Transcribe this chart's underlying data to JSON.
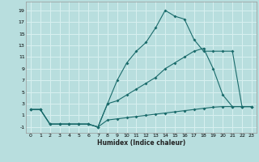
{
  "xlabel": "Humidex (Indice chaleur)",
  "bg_color": "#b8dede",
  "grid_color": "#d8f0f0",
  "line_color": "#1a6b6b",
  "xlim": [
    -0.5,
    23.5
  ],
  "ylim": [
    -2.0,
    20.5
  ],
  "xticks": [
    0,
    1,
    2,
    3,
    4,
    5,
    6,
    7,
    8,
    9,
    10,
    11,
    12,
    13,
    14,
    15,
    16,
    17,
    18,
    19,
    20,
    21,
    22,
    23
  ],
  "yticks": [
    -1,
    1,
    3,
    5,
    7,
    9,
    11,
    13,
    15,
    17,
    19
  ],
  "line1_x": [
    0,
    1,
    2,
    3,
    4,
    5,
    6,
    7,
    8,
    9,
    10,
    11,
    12,
    13,
    14,
    15,
    16,
    17,
    18,
    19,
    20,
    21,
    22,
    23
  ],
  "line1_y": [
    2,
    2,
    -0.5,
    -0.5,
    -0.5,
    -0.5,
    -0.5,
    -1.0,
    0.2,
    0.4,
    0.6,
    0.8,
    1.0,
    1.2,
    1.4,
    1.6,
    1.8,
    2.0,
    2.2,
    2.4,
    2.5,
    2.5,
    2.5,
    2.5
  ],
  "line2_x": [
    0,
    1,
    2,
    3,
    4,
    5,
    6,
    7,
    8,
    9,
    10,
    11,
    12,
    13,
    14,
    15,
    16,
    17,
    18,
    19,
    20,
    21,
    22,
    23
  ],
  "line2_y": [
    2,
    2,
    -0.5,
    -0.5,
    -0.5,
    -0.5,
    -0.5,
    -1.0,
    3.0,
    3.5,
    4.5,
    5.5,
    6.5,
    7.5,
    9.0,
    10.0,
    11.0,
    12.0,
    12.5,
    9.0,
    4.5,
    2.5,
    2.5,
    2.5
  ],
  "line3_x": [
    0,
    1,
    2,
    3,
    4,
    5,
    6,
    7,
    8,
    9,
    10,
    11,
    12,
    13,
    14,
    15,
    16,
    17,
    18,
    19,
    20,
    21,
    22,
    23
  ],
  "line3_y": [
    2,
    2,
    -0.5,
    -0.5,
    -0.5,
    -0.5,
    -0.5,
    -1.0,
    3.0,
    7.0,
    10.0,
    12.0,
    13.5,
    16.0,
    19.0,
    18.0,
    17.5,
    14.0,
    12.0,
    12.0,
    12.0,
    12.0,
    2.5,
    2.5
  ]
}
